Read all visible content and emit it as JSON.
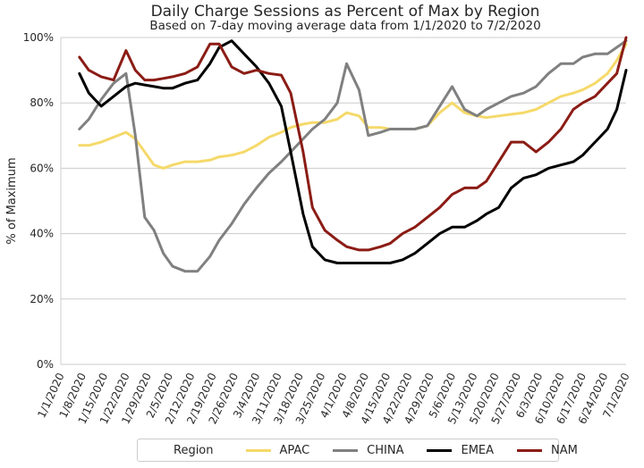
{
  "chart_data": {
    "type": "line",
    "title": "Daily Charge Sessions as Percent of Max by Region",
    "subtitle": "Based on 7-day moving average data from 1/1/2020 to 7/2/2020",
    "xlabel": "",
    "ylabel": "% of Maximum",
    "xlim": [
      "1/1/2020",
      "7/1/2020"
    ],
    "ylim": [
      0,
      100
    ],
    "x_ticks": [
      "1/1/2020",
      "1/8/2020",
      "1/15/2020",
      "1/22/2020",
      "1/29/2020",
      "2/5/2020",
      "2/12/2020",
      "2/19/2020",
      "2/26/2020",
      "3/4/2020",
      "3/11/2020",
      "3/18/2020",
      "3/25/2020",
      "4/1/2020",
      "4/8/2020",
      "4/15/2020",
      "4/22/2020",
      "4/29/2020",
      "5/6/2020",
      "5/13/2020",
      "5/20/2020",
      "5/27/2020",
      "6/3/2020",
      "6/10/2020",
      "6/17/2020",
      "6/24/2020",
      "7/1/2020"
    ],
    "y_ticks": [
      "0%",
      "20%",
      "40%",
      "60%",
      "80%",
      "100%"
    ],
    "grid": "horizontal",
    "legend": {
      "title": "Region",
      "placement": "bottom"
    },
    "x_dates": [
      "1/7/2020",
      "1/10/2020",
      "1/14/2020",
      "1/18/2020",
      "1/22/2020",
      "1/25/2020",
      "1/28/2020",
      "1/31/2020",
      "2/3/2020",
      "2/6/2020",
      "2/10/2020",
      "2/14/2020",
      "2/18/2020",
      "2/21/2020",
      "2/25/2020",
      "2/29/2020",
      "3/4/2020",
      "3/8/2020",
      "3/12/2020",
      "3/15/2020",
      "3/19/2020",
      "3/22/2020",
      "3/26/2020",
      "3/30/2020",
      "4/2/2020",
      "4/6/2020",
      "4/9/2020",
      "4/13/2020",
      "4/16/2020",
      "4/20/2020",
      "4/24/2020",
      "4/28/2020",
      "5/2/2020",
      "5/6/2020",
      "5/10/2020",
      "5/14/2020",
      "5/17/2020",
      "5/21/2020",
      "5/25/2020",
      "5/29/2020",
      "6/2/2020",
      "6/6/2020",
      "6/10/2020",
      "6/14/2020",
      "6/17/2020",
      "6/21/2020",
      "6/25/2020",
      "6/28/2020",
      "7/1/2020"
    ],
    "series": [
      {
        "name": "APAC",
        "color": "#f5d96a",
        "values": [
          67,
          67,
          68,
          69.5,
          71,
          69,
          65,
          61,
          60,
          61,
          62,
          62,
          62.5,
          63.5,
          64,
          65,
          67,
          69.5,
          71,
          72.5,
          73.5,
          74,
          74,
          75,
          77,
          76,
          72.5,
          72.5,
          72,
          72,
          72,
          73,
          77,
          80,
          77,
          76,
          75.5,
          76,
          76.5,
          77,
          78,
          80,
          82,
          83,
          84,
          86,
          89,
          93,
          98
        ]
      },
      {
        "name": "CHINA",
        "color": "#808080",
        "values": [
          72,
          75,
          81,
          86,
          89,
          70,
          45,
          41,
          34,
          30,
          28.5,
          28.5,
          33,
          38,
          43,
          49,
          54,
          58.5,
          62,
          65,
          69,
          72,
          75,
          80,
          92,
          84,
          70,
          71,
          72,
          72,
          72,
          73,
          79,
          85,
          78,
          76,
          78,
          80,
          82,
          83,
          85,
          89,
          92,
          92,
          94,
          95,
          95,
          97,
          99
        ]
      },
      {
        "name": "EMEA",
        "color": "#000000",
        "values": [
          89,
          83,
          79,
          82,
          85,
          86,
          85.5,
          85,
          84.5,
          84.5,
          86,
          87,
          92,
          97,
          99,
          95,
          91,
          86,
          79,
          65,
          46,
          36,
          32,
          31,
          31,
          31,
          31,
          31,
          31,
          32,
          34,
          37,
          40,
          42,
          42,
          44,
          46,
          48,
          54,
          57,
          58,
          60,
          61,
          62,
          64,
          68,
          72,
          78,
          90
        ]
      },
      {
        "name": "NAM",
        "color": "#8b1c15",
        "values": [
          94,
          90,
          88,
          87,
          96,
          90,
          87,
          87,
          87.5,
          88,
          89,
          91,
          98,
          98,
          91,
          89,
          90,
          89,
          88.5,
          83,
          65,
          48,
          41,
          38,
          36,
          35,
          35,
          36,
          37,
          40,
          42,
          45,
          48,
          52,
          54,
          54,
          56,
          62,
          68,
          68,
          65,
          68,
          72,
          78,
          80,
          82,
          86,
          89,
          100
        ]
      }
    ]
  }
}
